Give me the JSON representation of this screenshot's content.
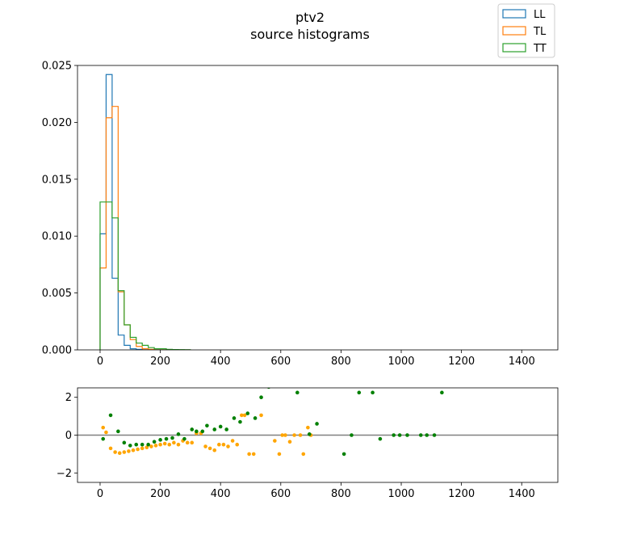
{
  "title_lines": [
    "ptv2",
    "source histograms"
  ],
  "chart_data": [
    {
      "type": "histogram-step",
      "name": "top-panel",
      "xlim": [
        -75,
        1520
      ],
      "ylim": [
        0,
        0.025
      ],
      "xticks": [
        0,
        200,
        400,
        600,
        800,
        1000,
        1200,
        1400
      ],
      "xtick_labels": [
        "0",
        "200",
        "400",
        "600",
        "800",
        "1000",
        "1200",
        "1400"
      ],
      "yticks": [
        0,
        0.005,
        0.01,
        0.015,
        0.02,
        0.025
      ],
      "ytick_labels": [
        "0.000",
        "0.005",
        "0.010",
        "0.015",
        "0.020",
        "0.025"
      ],
      "bin_edges": [
        0,
        20,
        40,
        60,
        80,
        100,
        120,
        140,
        160,
        180,
        200,
        220,
        240,
        260,
        280,
        300
      ],
      "legend": {
        "placement": "top-right",
        "entries": [
          "LL",
          "TL",
          "TT"
        ]
      },
      "series": [
        {
          "name": "LL",
          "color": "#1f77b4",
          "values": [
            0.0102,
            0.0242,
            0.0063,
            0.0013,
            0.0004,
            0.0001,
            5e-05,
            0,
            0,
            0,
            0,
            0,
            0,
            0,
            0
          ]
        },
        {
          "name": "TL",
          "color": "#ff7f0e",
          "values": [
            0.0072,
            0.0204,
            0.0214,
            0.0051,
            0.0022,
            0.0009,
            0.0003,
            0.0001,
            5e-05,
            0,
            0,
            0,
            0,
            0,
            0
          ]
        },
        {
          "name": "TT",
          "color": "#2ca02c",
          "values": [
            0.013,
            0.013,
            0.0116,
            0.0052,
            0.0022,
            0.0011,
            0.0006,
            0.0004,
            0.0002,
            0.0001,
            0.0001,
            5e-05,
            3e-05,
            2e-05,
            1e-05
          ]
        }
      ]
    },
    {
      "type": "scatter",
      "name": "bottom-panel",
      "xlim": [
        -75,
        1520
      ],
      "ylim": [
        -2.5,
        2.5
      ],
      "xticks": [
        0,
        200,
        400,
        600,
        800,
        1000,
        1200,
        1400
      ],
      "xtick_labels": [
        "0",
        "200",
        "400",
        "600",
        "800",
        "1000",
        "1200",
        "1400"
      ],
      "yticks": [
        -2,
        0,
        2
      ],
      "ytick_labels": [
        "−2",
        "0",
        "2"
      ],
      "reference_line": {
        "y": 0,
        "color": "#808080"
      },
      "series": [
        {
          "color": "#ffa500",
          "points": [
            [
              10,
              0.4
            ],
            [
              20,
              0.15
            ],
            [
              35,
              -0.7
            ],
            [
              50,
              -0.9
            ],
            [
              65,
              -0.95
            ],
            [
              80,
              -0.9
            ],
            [
              95,
              -0.85
            ],
            [
              110,
              -0.8
            ],
            [
              125,
              -0.75
            ],
            [
              140,
              -0.7
            ],
            [
              155,
              -0.65
            ],
            [
              170,
              -0.6
            ],
            [
              185,
              -0.55
            ],
            [
              200,
              -0.5
            ],
            [
              215,
              -0.45
            ],
            [
              230,
              -0.5
            ],
            [
              245,
              -0.4
            ],
            [
              260,
              -0.5
            ],
            [
              275,
              -0.3
            ],
            [
              290,
              -0.4
            ],
            [
              305,
              -0.4
            ],
            [
              320,
              0.1
            ],
            [
              335,
              0.1
            ],
            [
              350,
              -0.6
            ],
            [
              365,
              -0.7
            ],
            [
              380,
              -0.8
            ],
            [
              395,
              -0.5
            ],
            [
              410,
              -0.5
            ],
            [
              425,
              -0.6
            ],
            [
              440,
              -0.3
            ],
            [
              455,
              -0.5
            ],
            [
              470,
              1.05
            ],
            [
              480,
              1.05
            ],
            [
              495,
              -1.0
            ],
            [
              510,
              -1.0
            ],
            [
              535,
              1.05
            ],
            [
              580,
              -0.3
            ],
            [
              595,
              -1.0
            ],
            [
              605,
              0.0
            ],
            [
              615,
              0.0
            ],
            [
              630,
              -0.35
            ],
            [
              645,
              0.0
            ],
            [
              665,
              0.0
            ],
            [
              675,
              -1.0
            ],
            [
              690,
              0.4
            ],
            [
              700,
              0.0
            ]
          ]
        },
        {
          "color": "#008000",
          "points": [
            [
              10,
              -0.2
            ],
            [
              35,
              1.05
            ],
            [
              60,
              0.2
            ],
            [
              80,
              -0.4
            ],
            [
              100,
              -0.55
            ],
            [
              120,
              -0.5
            ],
            [
              140,
              -0.5
            ],
            [
              160,
              -0.5
            ],
            [
              180,
              -0.35
            ],
            [
              200,
              -0.25
            ],
            [
              220,
              -0.2
            ],
            [
              240,
              -0.15
            ],
            [
              260,
              0.05
            ],
            [
              280,
              -0.2
            ],
            [
              305,
              0.3
            ],
            [
              320,
              0.2
            ],
            [
              340,
              0.2
            ],
            [
              355,
              0.5
            ],
            [
              380,
              0.3
            ],
            [
              400,
              0.45
            ],
            [
              420,
              0.3
            ],
            [
              445,
              0.9
            ],
            [
              465,
              0.7
            ],
            [
              490,
              1.15
            ],
            [
              515,
              0.9
            ],
            [
              535,
              2.0
            ],
            [
              560,
              2.55
            ],
            [
              655,
              2.25
            ],
            [
              695,
              0.05
            ],
            [
              720,
              0.6
            ],
            [
              810,
              -1.0
            ],
            [
              835,
              0.0
            ],
            [
              860,
              2.25
            ],
            [
              905,
              2.25
            ],
            [
              930,
              -0.2
            ],
            [
              975,
              0.0
            ],
            [
              995,
              0.0
            ],
            [
              1020,
              0.0
            ],
            [
              1065,
              0.0
            ],
            [
              1085,
              0.0
            ],
            [
              1110,
              0.0
            ],
            [
              1135,
              2.25
            ]
          ]
        }
      ]
    }
  ]
}
